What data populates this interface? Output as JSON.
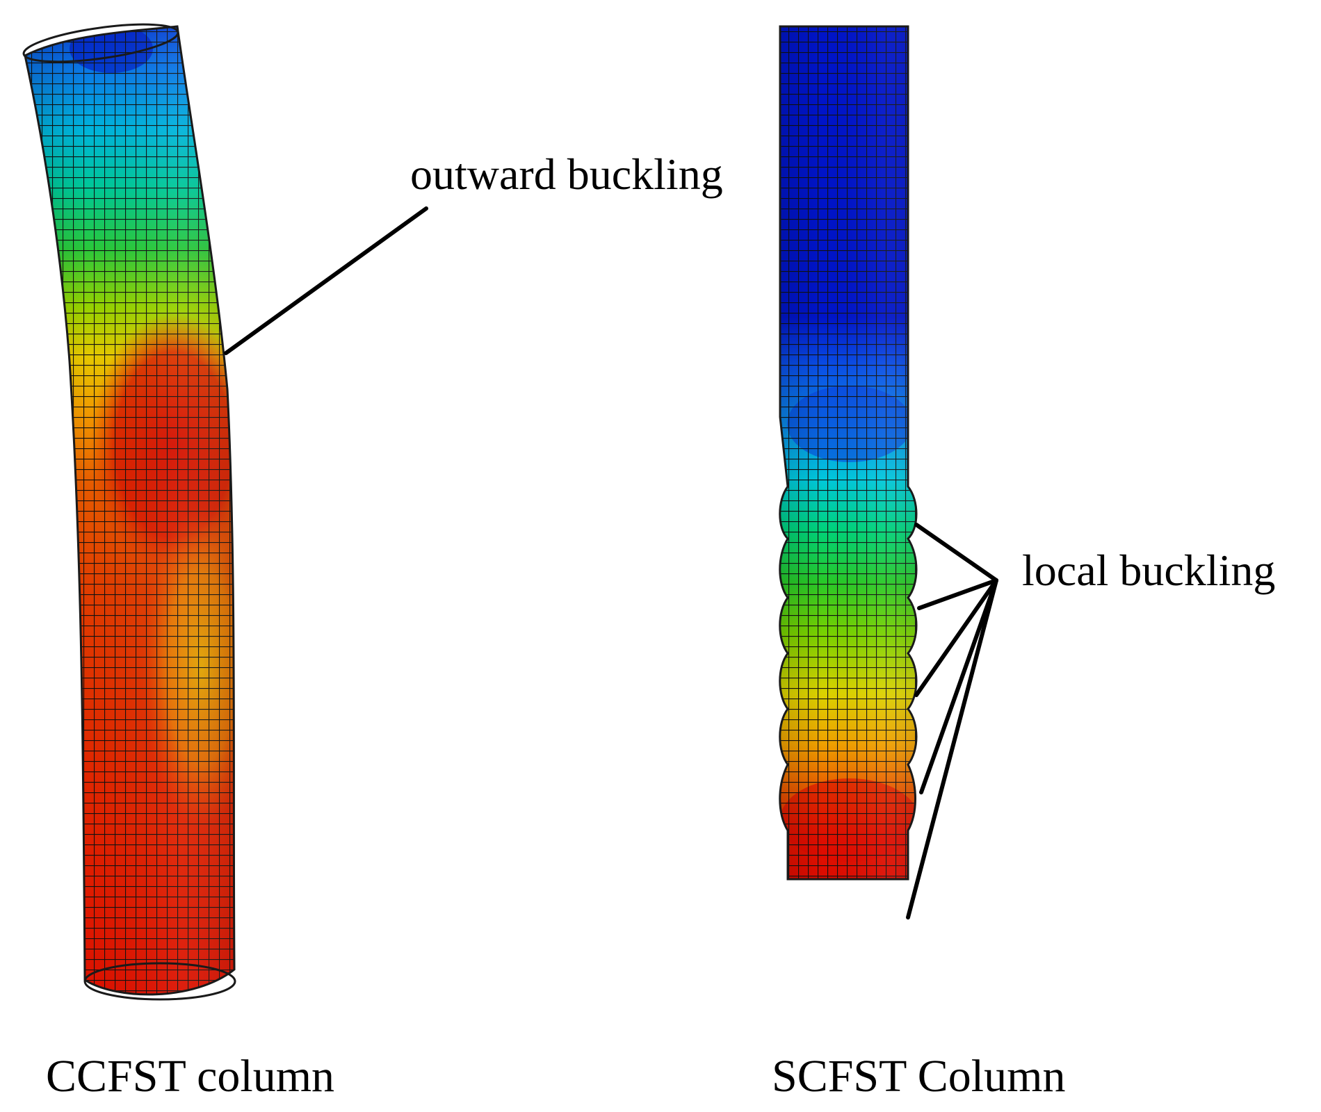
{
  "figure": {
    "left_column": {
      "caption": "CCFST column",
      "annotation": "outward buckling"
    },
    "right_column": {
      "caption": "SCFST Column",
      "annotation": "local buckling"
    },
    "contour_colors": [
      "#0000c8",
      "#0a5ff0",
      "#00b4e6",
      "#00d278",
      "#32c814",
      "#b4d200",
      "#f0c800",
      "#f08200",
      "#e63c00",
      "#dc0a00"
    ]
  }
}
